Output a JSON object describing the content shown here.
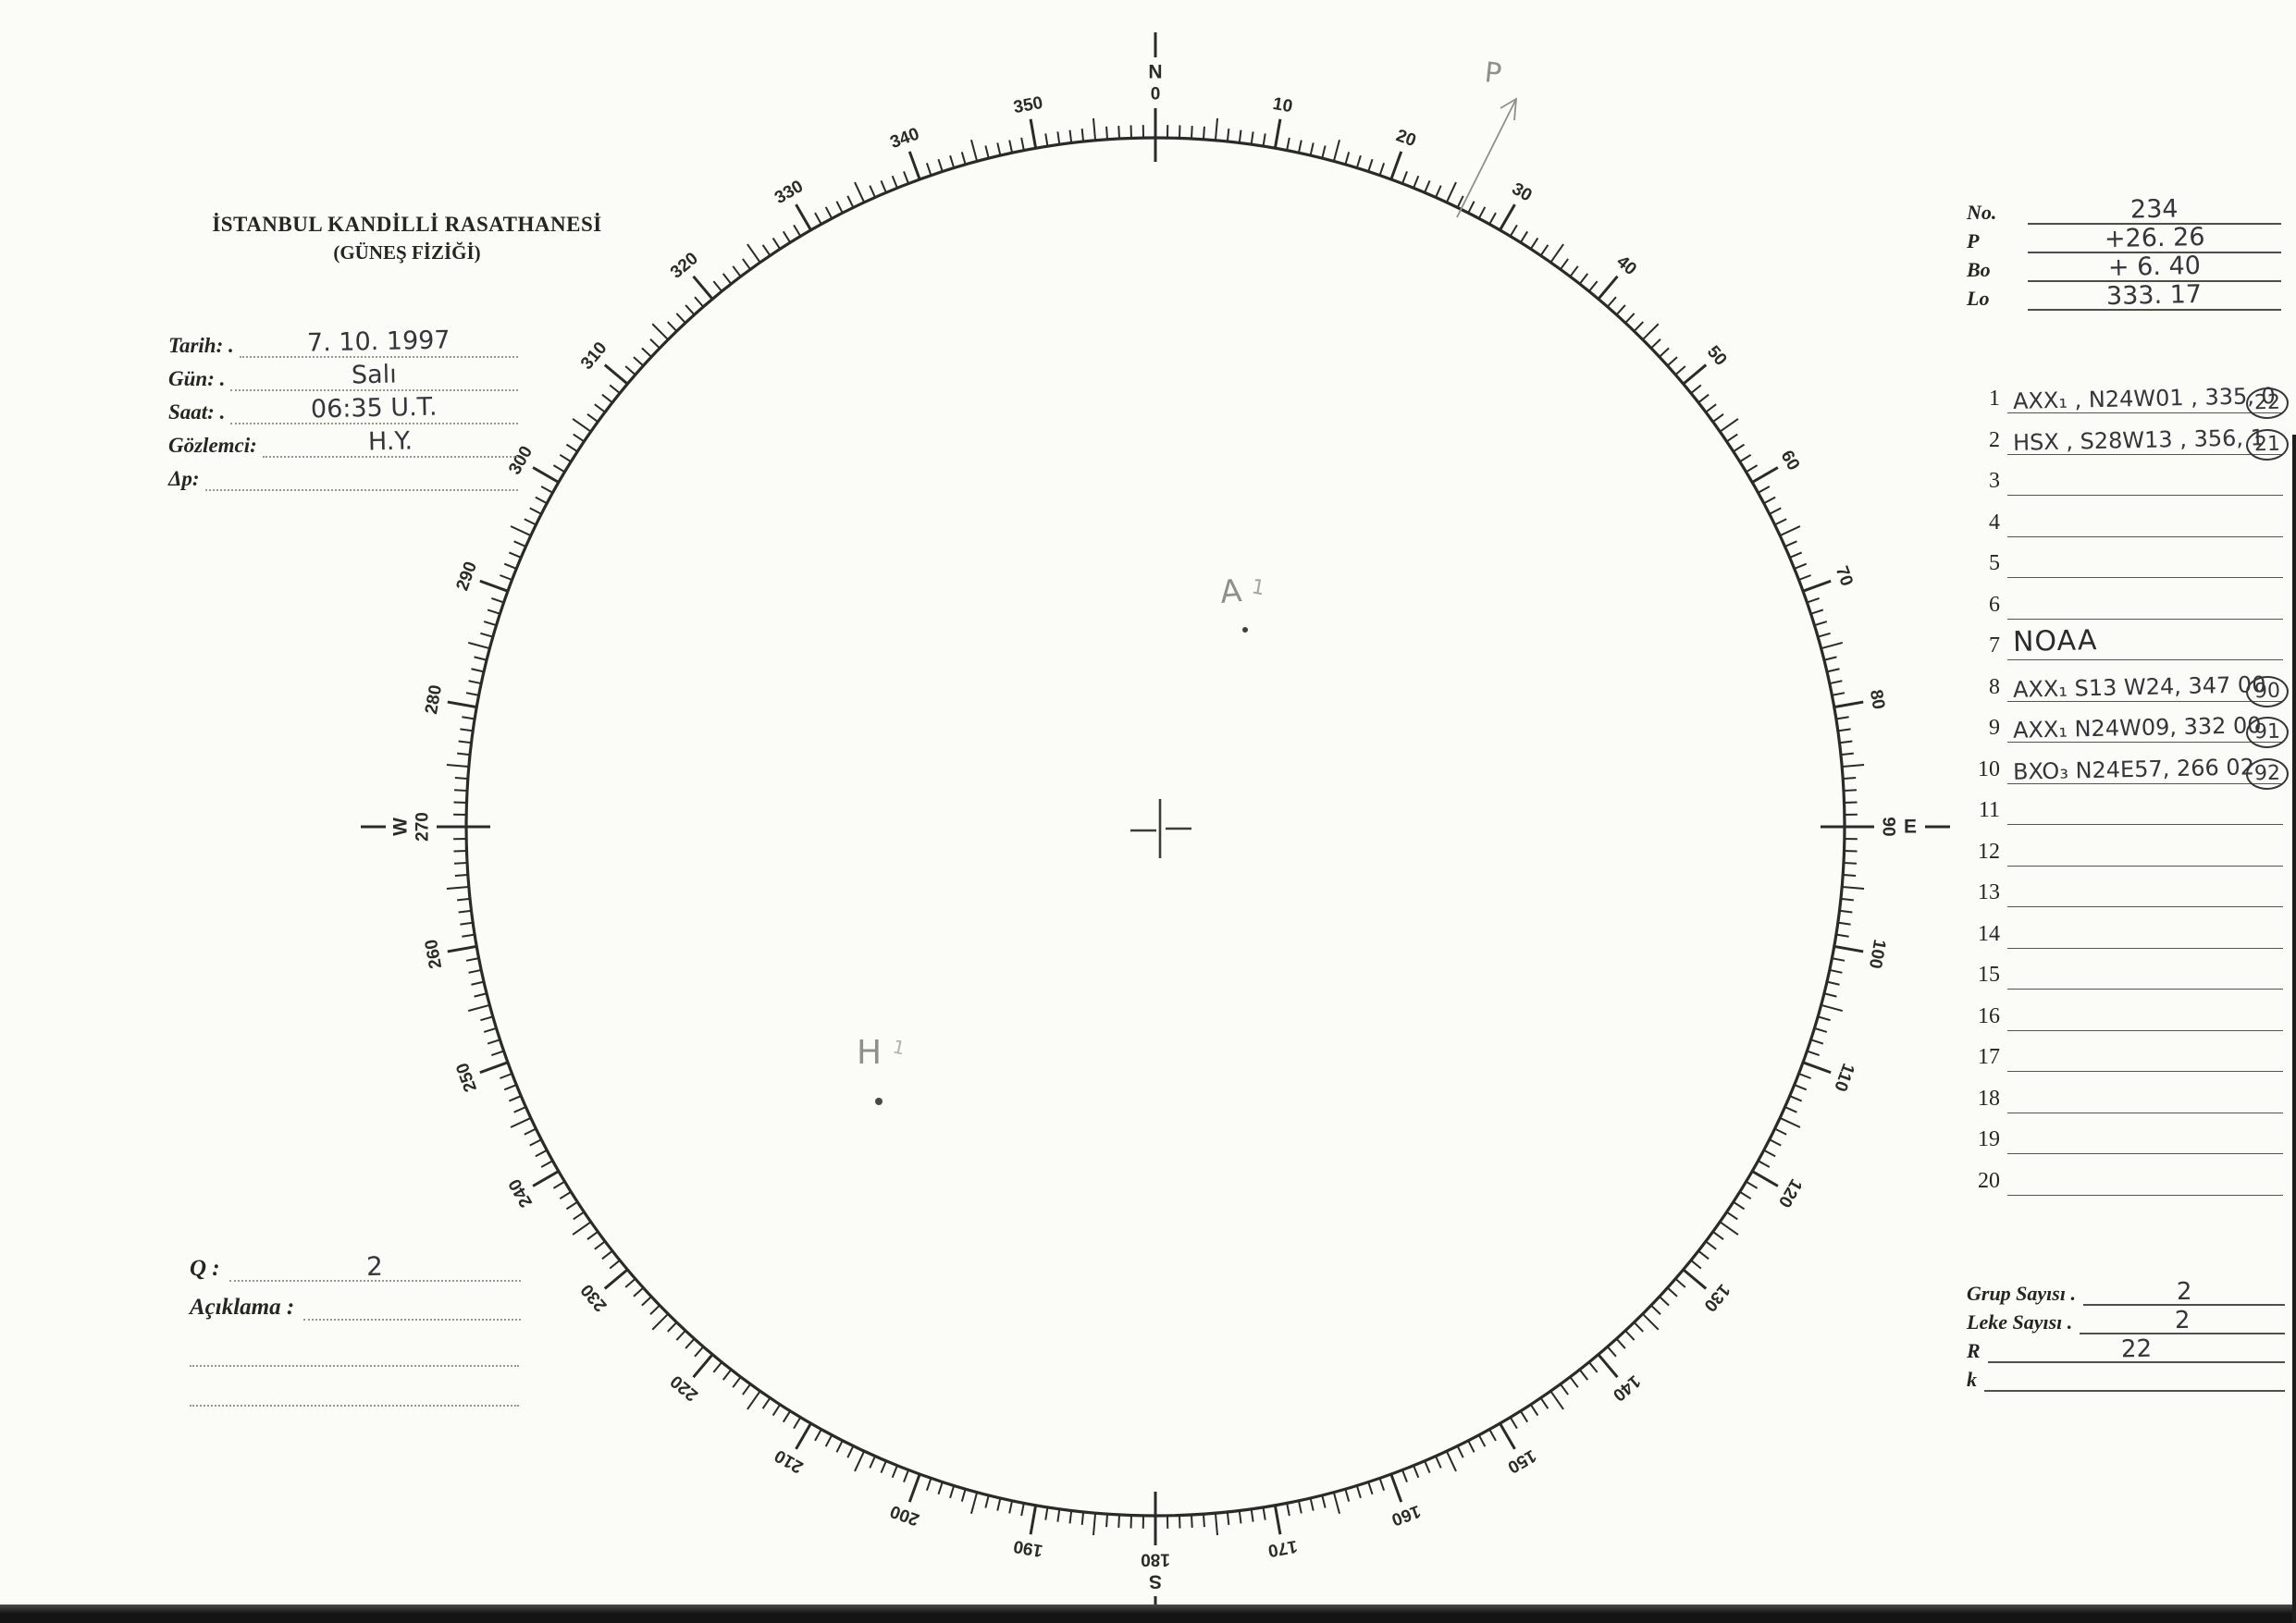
{
  "observatory": {
    "title": "İSTANBUL KANDİLLİ RASATHANESİ",
    "subtitle": "(GÜNEŞ FİZİĞİ)"
  },
  "fields": [
    {
      "label": "Tarih: .",
      "value": "7. 10. 1997"
    },
    {
      "label": "Gün: .",
      "value": "Salı"
    },
    {
      "label": "Saat: .",
      "value": "06:35   U.T."
    },
    {
      "label": "Gözlemci:",
      "value": "H.Y."
    },
    {
      "label": "Δp:",
      "value": ""
    }
  ],
  "quality": {
    "label": "Q :",
    "value": "2"
  },
  "remark": {
    "label": "Açıklama :",
    "value": ""
  },
  "ephemeris": [
    {
      "label": "No.",
      "value": "234"
    },
    {
      "label": "P",
      "value": "+26. 26"
    },
    {
      "label": "Bo",
      "value": "+ 6. 40"
    },
    {
      "label": "Lo",
      "value": "333. 17"
    }
  ],
  "group_list": {
    "rows": [
      {
        "num": "1",
        "text": "AXX₁ , N24W01 , 335, 0",
        "circled": "22",
        "style": "ink"
      },
      {
        "num": "2",
        "text": "HSX , S28W13 , 356, 1",
        "circled": "21",
        "style": "ink"
      },
      {
        "num": "3",
        "text": "",
        "circled": "",
        "style": ""
      },
      {
        "num": "4",
        "text": "",
        "circled": "",
        "style": ""
      },
      {
        "num": "5",
        "text": "",
        "circled": "",
        "style": ""
      },
      {
        "num": "6",
        "text": "",
        "circled": "",
        "style": ""
      },
      {
        "num": "7",
        "text": "NOAA",
        "circled": "",
        "style": "noaa"
      },
      {
        "num": "8",
        "text": "AXX₁ S13 W24, 347  00",
        "circled": "90",
        "style": "pencil"
      },
      {
        "num": "9",
        "text": "AXX₁ N24W09, 332  00",
        "circled": "91",
        "style": "pencil"
      },
      {
        "num": "10",
        "text": "BXO₃ N24E57, 266  02",
        "circled": "92",
        "style": "pencil"
      },
      {
        "num": "11",
        "text": "",
        "circled": "",
        "style": ""
      },
      {
        "num": "12",
        "text": "",
        "circled": "",
        "style": ""
      },
      {
        "num": "13",
        "text": "",
        "circled": "",
        "style": ""
      },
      {
        "num": "14",
        "text": "",
        "circled": "",
        "style": ""
      },
      {
        "num": "15",
        "text": "",
        "circled": "",
        "style": ""
      },
      {
        "num": "16",
        "text": "",
        "circled": "",
        "style": ""
      },
      {
        "num": "17",
        "text": "",
        "circled": "",
        "style": ""
      },
      {
        "num": "18",
        "text": "",
        "circled": "",
        "style": ""
      },
      {
        "num": "19",
        "text": "",
        "circled": "",
        "style": ""
      },
      {
        "num": "20",
        "text": "",
        "circled": "",
        "style": ""
      }
    ]
  },
  "summary": [
    {
      "label": "Grup Sayısı .",
      "value": "2"
    },
    {
      "label": "Leke Sayısı .",
      "value": "2"
    },
    {
      "label": "R",
      "value": "22"
    },
    {
      "label": "k",
      "value": ""
    }
  ],
  "dial": {
    "cardinals": {
      "0": "N",
      "90": "E",
      "180": "S",
      "270": "W"
    },
    "degree_label_step": 10,
    "medium_tick_step": 5,
    "minor_tick_step": 1
  },
  "annotations": {
    "p_label": "P",
    "group_a_label": "A",
    "group_a_index": "1",
    "group_h_label": "H",
    "group_h_index": "1"
  },
  "colors": {
    "paper": "#fbfbf8",
    "print": "#2b2b26",
    "hand_ink": "#43434b",
    "pencil": "#90908a"
  }
}
